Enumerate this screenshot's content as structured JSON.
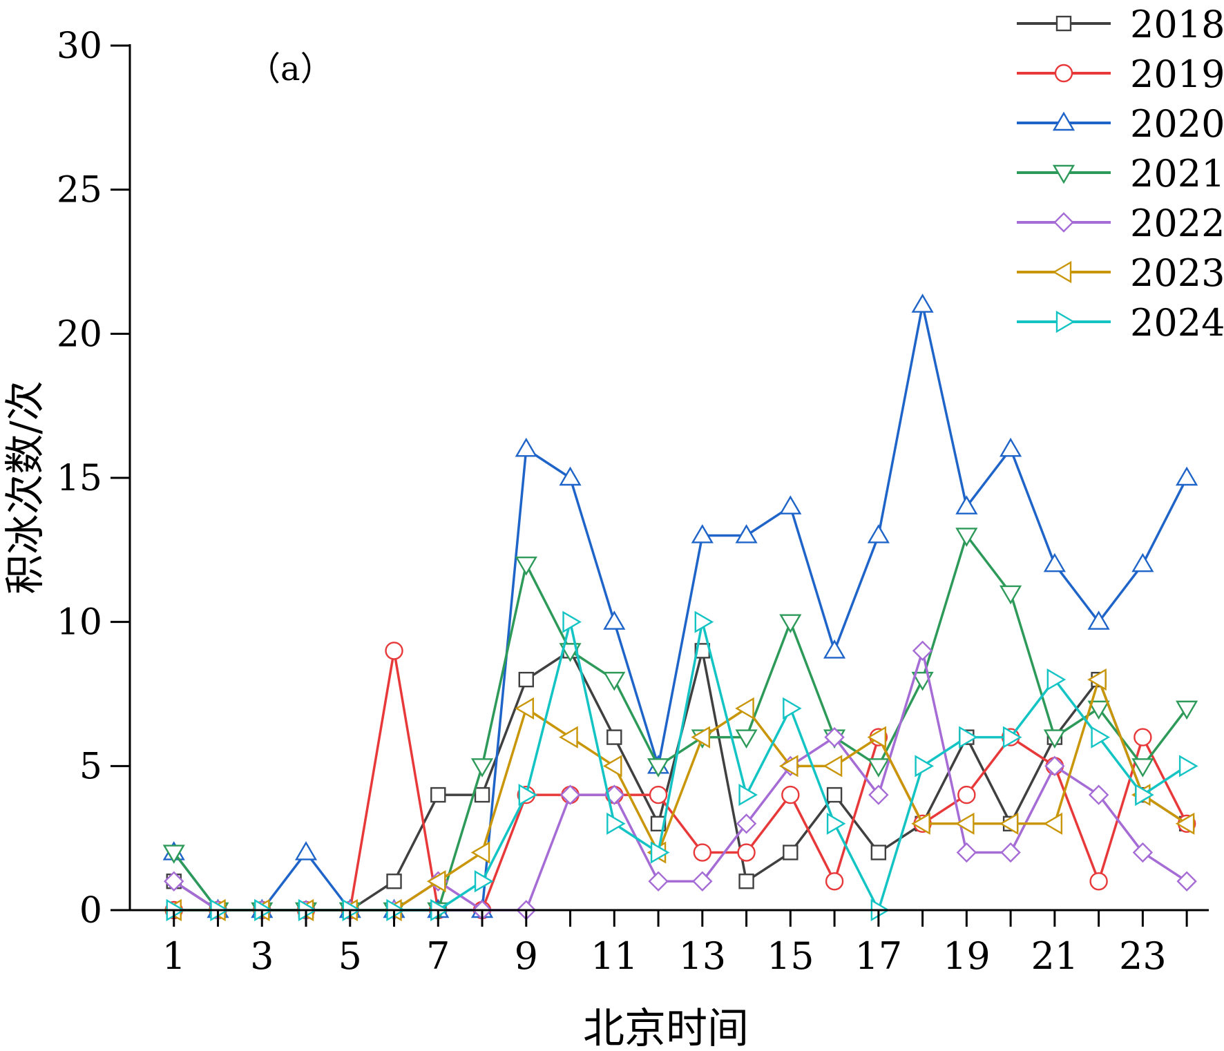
{
  "chart_data": {
    "type": "line",
    "panel_label": "（a）",
    "xlabel": "北京时间",
    "ylabel": "积冰次数/次",
    "x": [
      1,
      2,
      3,
      4,
      5,
      6,
      7,
      8,
      9,
      10,
      11,
      12,
      13,
      14,
      15,
      16,
      17,
      18,
      19,
      20,
      21,
      22,
      23,
      24
    ],
    "xticks": [
      1,
      2,
      3,
      4,
      5,
      6,
      7,
      8,
      9,
      10,
      11,
      12,
      13,
      14,
      15,
      16,
      17,
      18,
      19,
      20,
      21,
      22,
      23,
      24
    ],
    "xticklabels": [
      "1",
      "3",
      "5",
      "7",
      "9",
      "11",
      "13",
      "15",
      "17",
      "19",
      "21",
      "23"
    ],
    "xticklabel_values": [
      1,
      3,
      5,
      7,
      9,
      11,
      13,
      15,
      17,
      19,
      21,
      23
    ],
    "xlim": [
      0,
      24.5
    ],
    "ylim": [
      0,
      30
    ],
    "yticks": [
      0,
      5,
      10,
      15,
      20,
      25,
      30
    ],
    "yticklabels": [
      "0",
      "5",
      "10",
      "15",
      "20",
      "25",
      "30"
    ],
    "legend_position": "top-right",
    "series": [
      {
        "name": "2018",
        "color": "#404040",
        "marker": "square",
        "values": [
          1,
          0,
          0,
          0,
          0,
          1,
          4,
          4,
          8,
          9,
          6,
          3,
          9,
          1,
          2,
          4,
          2,
          3,
          6,
          3,
          6,
          8,
          4,
          3
        ]
      },
      {
        "name": "2019",
        "color": "#e8393a",
        "marker": "circle",
        "values": [
          0,
          0,
          0,
          0,
          0,
          9,
          0,
          0,
          4,
          4,
          4,
          4,
          2,
          2,
          4,
          1,
          6,
          3,
          4,
          6,
          5,
          1,
          6,
          3
        ]
      },
      {
        "name": "2020",
        "color": "#1f64c8",
        "marker": "triangle-up",
        "values": [
          2,
          0,
          0,
          2,
          0,
          0,
          0,
          0,
          16,
          15,
          10,
          5,
          13,
          13,
          14,
          9,
          13,
          21,
          14,
          16,
          12,
          10,
          12,
          15
        ]
      },
      {
        "name": "2021",
        "color": "#2e9a5a",
        "marker": "triangle-down",
        "values": [
          2,
          0,
          0,
          0,
          0,
          0,
          0,
          5,
          12,
          9,
          8,
          5,
          6,
          6,
          10,
          6,
          5,
          8,
          13,
          11,
          6,
          7,
          5,
          7
        ]
      },
      {
        "name": "2022",
        "color": "#a56cd6",
        "marker": "diamond",
        "values": [
          1,
          0,
          0,
          0,
          0,
          0,
          1,
          0,
          0,
          4,
          4,
          1,
          1,
          3,
          5,
          6,
          4,
          9,
          2,
          2,
          5,
          4,
          2,
          1
        ]
      },
      {
        "name": "2023",
        "color": "#c9960a",
        "marker": "triangle-left",
        "values": [
          0,
          0,
          0,
          0,
          0,
          0,
          1,
          2,
          7,
          6,
          5,
          2,
          6,
          7,
          5,
          5,
          6,
          3,
          3,
          3,
          3,
          8,
          4,
          3
        ]
      },
      {
        "name": "2024",
        "color": "#14c4c4",
        "marker": "triangle-right",
        "values": [
          0,
          0,
          0,
          0,
          0,
          0,
          0,
          1,
          4,
          10,
          3,
          2,
          10,
          4,
          7,
          3,
          0,
          5,
          6,
          6,
          8,
          6,
          4,
          5
        ]
      }
    ]
  }
}
